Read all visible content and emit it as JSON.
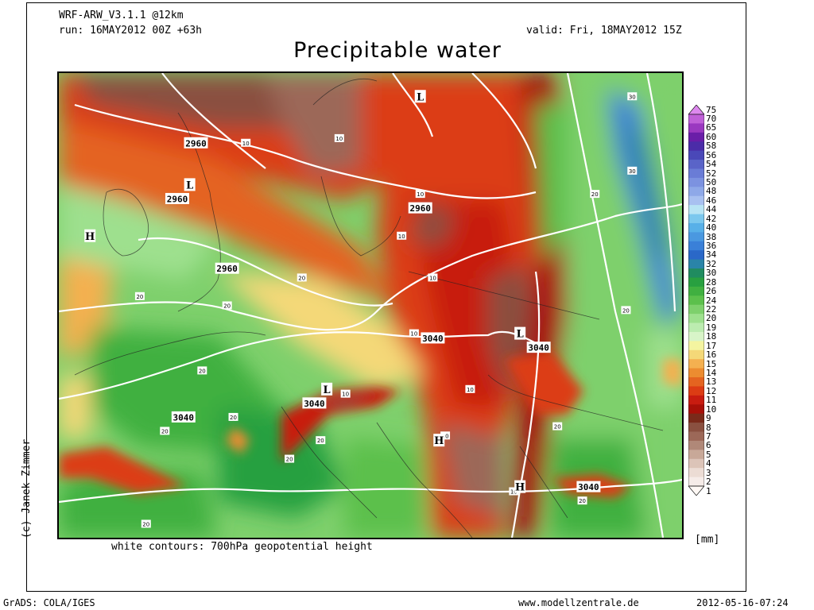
{
  "header": {
    "model": "WRF-ARW_V3.1.1 @12km",
    "run": "run: 16MAY2012 00Z +63h",
    "valid": "valid: Fri, 18MAY2012 15Z",
    "title": "Precipitable water"
  },
  "map": {
    "contour_note": "white contours: 700hPa geopotential height",
    "credit": "(c) Janek Zimmer",
    "height_labels": [
      {
        "text": "2960",
        "lon": 0.22,
        "lat": 0.15
      },
      {
        "text": "2960",
        "lon": 0.19,
        "lat": 0.27
      },
      {
        "text": "2960",
        "lon": 0.58,
        "lat": 0.29
      },
      {
        "text": "2960",
        "lon": 0.27,
        "lat": 0.42
      },
      {
        "text": "3040",
        "lon": 0.6,
        "lat": 0.57
      },
      {
        "text": "3040",
        "lon": 0.77,
        "lat": 0.59
      },
      {
        "text": "3040",
        "lon": 0.41,
        "lat": 0.71
      },
      {
        "text": "3040",
        "lon": 0.2,
        "lat": 0.74
      },
      {
        "text": "3040",
        "lon": 0.85,
        "lat": 0.89
      }
    ],
    "pw_labels": [
      {
        "text": "10",
        "lon": 0.3,
        "lat": 0.15
      },
      {
        "text": "10",
        "lon": 0.45,
        "lat": 0.14
      },
      {
        "text": "10",
        "lon": 0.58,
        "lat": 0.26
      },
      {
        "text": "10",
        "lon": 0.55,
        "lat": 0.35
      },
      {
        "text": "10",
        "lon": 0.6,
        "lat": 0.44
      },
      {
        "text": "10",
        "lon": 0.57,
        "lat": 0.56
      },
      {
        "text": "10",
        "lon": 0.46,
        "lat": 0.69
      },
      {
        "text": "10",
        "lon": 0.66,
        "lat": 0.68
      },
      {
        "text": "10",
        "lon": 0.62,
        "lat": 0.78
      },
      {
        "text": "10",
        "lon": 0.73,
        "lat": 0.9
      },
      {
        "text": "20",
        "lon": 0.39,
        "lat": 0.44
      },
      {
        "text": "20",
        "lon": 0.13,
        "lat": 0.48
      },
      {
        "text": "20",
        "lon": 0.27,
        "lat": 0.5
      },
      {
        "text": "20",
        "lon": 0.23,
        "lat": 0.64
      },
      {
        "text": "20",
        "lon": 0.28,
        "lat": 0.74
      },
      {
        "text": "20",
        "lon": 0.17,
        "lat": 0.77
      },
      {
        "text": "20",
        "lon": 0.42,
        "lat": 0.79
      },
      {
        "text": "20",
        "lon": 0.37,
        "lat": 0.83
      },
      {
        "text": "20",
        "lon": 0.86,
        "lat": 0.26
      },
      {
        "text": "20",
        "lon": 0.91,
        "lat": 0.51
      },
      {
        "text": "20",
        "lon": 0.8,
        "lat": 0.76
      },
      {
        "text": "20",
        "lon": 0.14,
        "lat": 0.97
      },
      {
        "text": "20",
        "lon": 0.84,
        "lat": 0.92
      },
      {
        "text": "30",
        "lon": 0.92,
        "lat": 0.05
      },
      {
        "text": "30",
        "lon": 0.92,
        "lat": 0.21
      }
    ],
    "pressure_centers": [
      {
        "text": "L",
        "lon": 0.58,
        "lat": 0.05
      },
      {
        "text": "L",
        "lon": 0.21,
        "lat": 0.24
      },
      {
        "text": "L",
        "lon": 0.74,
        "lat": 0.56
      },
      {
        "text": "L",
        "lon": 0.43,
        "lat": 0.68
      },
      {
        "text": "H",
        "lon": 0.05,
        "lat": 0.35
      },
      {
        "text": "H",
        "lon": 0.61,
        "lat": 0.79
      },
      {
        "text": "H",
        "lon": 0.74,
        "lat": 0.89
      }
    ]
  },
  "colorbar": {
    "unit": "[mm]",
    "levels": [
      "75",
      "70",
      "65",
      "60",
      "58",
      "56",
      "54",
      "52",
      "50",
      "48",
      "46",
      "44",
      "42",
      "40",
      "38",
      "36",
      "34",
      "32",
      "30",
      "28",
      "26",
      "24",
      "22",
      "20",
      "19",
      "18",
      "17",
      "16",
      "15",
      "14",
      "13",
      "12",
      "11",
      "10",
      "9",
      "8",
      "7",
      "6",
      "5",
      "4",
      "3",
      "2",
      "1"
    ],
    "colors": [
      "#dd88ee",
      "#c060d8",
      "#9a38c0",
      "#6a1ea8",
      "#4b2ca8",
      "#4a48b8",
      "#5a64c8",
      "#6a7cd6",
      "#7c92e0",
      "#8ea8e8",
      "#a8c0f0",
      "#b8e4f4",
      "#7cc8ee",
      "#58b0e8",
      "#4a98e0",
      "#3a80d8",
      "#2a68c8",
      "#2a84a8",
      "#208c60",
      "#28a040",
      "#40b040",
      "#5cc04c",
      "#7ed06c",
      "#9ee08e",
      "#bcecb0",
      "#d8f4c8",
      "#f4f4a0",
      "#f4d878",
      "#f4b050",
      "#ec8c30",
      "#e46420",
      "#dc3c14",
      "#c81c10",
      "#a81008",
      "#7a2a1a",
      "#8a5040",
      "#9c6858",
      "#b08878",
      "#c8a898",
      "#dcc4b8",
      "#ecdcd4",
      "#f6ece8",
      "#fff8f4"
    ]
  },
  "footer": {
    "left": "GrADS: COLA/IGES",
    "center": "www.modellzentrale.de",
    "right": "2012-05-16-07:24"
  }
}
